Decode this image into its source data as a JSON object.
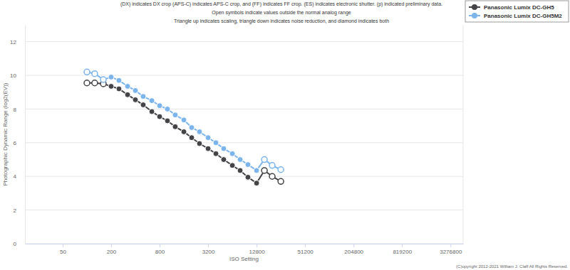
{
  "chart_data": {
    "type": "line",
    "annotations": [
      "(DX) indicates DX crop (APS-C) indicates APS-C crop, and (FF) indicates FF crop. (ES) indicates electronic shutter. (p) indicated preliminary data.",
      "Open symbols indicate values outside the normal analog range",
      "Triangle up indicates scaling, triangle down indicates noise reduction, and diamond indicates both"
    ],
    "source": "(C)opyright 2012-2021 William J. Claff All Rights Reserved.",
    "x_label": "ISO Setting",
    "y_label": "Photographic Dynamic Range (log2(EV))",
    "x": [
      100,
      125,
      160,
      200,
      250,
      320,
      400,
      500,
      640,
      800,
      1000,
      1250,
      1600,
      2000,
      2500,
      3200,
      4000,
      5000,
      6400,
      8000,
      10000,
      12800,
      16000,
      20000,
      25600
    ],
    "series": [
      {
        "name": "Panasonic Lumix DC-GH5",
        "color": "#434348",
        "marker": "circle",
        "line_style": "solid",
        "values": [
          9.55,
          9.55,
          9.5,
          9.35,
          9.2,
          8.85,
          8.55,
          8.25,
          7.85,
          7.55,
          7.3,
          6.95,
          6.65,
          6.3,
          5.95,
          5.65,
          5.35,
          5.0,
          4.65,
          4.35,
          3.95,
          3.6,
          4.35,
          4.0,
          3.7
        ],
        "open": [
          true,
          true,
          true,
          false,
          false,
          false,
          false,
          false,
          false,
          false,
          false,
          false,
          false,
          false,
          false,
          false,
          false,
          false,
          false,
          false,
          false,
          false,
          true,
          true,
          true
        ]
      },
      {
        "name": "Panasonic Lumix DC-GH5M2",
        "color": "#7cb5ec",
        "marker": "circle",
        "line_style": "solid",
        "values": [
          10.2,
          10.1,
          9.75,
          9.9,
          9.7,
          9.35,
          9.1,
          8.75,
          8.5,
          8.2,
          8.0,
          7.65,
          7.35,
          6.9,
          6.65,
          6.3,
          6.0,
          5.65,
          5.35,
          5.0,
          4.7,
          4.35,
          5.0,
          4.65,
          4.4
        ],
        "open": [
          true,
          true,
          true,
          false,
          false,
          false,
          false,
          false,
          false,
          false,
          false,
          false,
          false,
          false,
          false,
          false,
          false,
          false,
          false,
          false,
          false,
          false,
          true,
          true,
          true
        ]
      }
    ],
    "xlim": [
      17,
      4700000
    ],
    "xticks": [
      50,
      200,
      800,
      3200,
      12800,
      51200,
      204800,
      819200,
      3276800
    ],
    "ylim": [
      0,
      13
    ],
    "yticks": [
      0,
      2,
      4,
      6,
      8,
      10,
      12
    ],
    "log": "x",
    "grid": "y",
    "legend": "top-right"
  }
}
